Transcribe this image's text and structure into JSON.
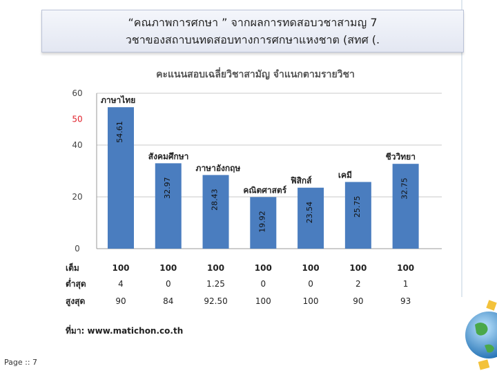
{
  "header": {
    "line1": "“คณภาพการศกษา ” จากผลการทดสอบวชาสามญ 7",
    "line2": "วชาของสถาบนทดสอบทางการศกษาแหงชาต (สทศ (."
  },
  "footer": {
    "page_label": "Page :: 7"
  },
  "chart_data": {
    "type": "bar",
    "title": "คะแนนสอบเฉลี่ยวิชาสามัญ จำแนกตามรายวิชา",
    "categories": [
      "ภาษาไทย",
      "สังคมศึกษา",
      "ภาษาอังกฤษ",
      "คณิตศาสตร์",
      "ฟิสิกส์",
      "เคมี",
      "ชีววิทยา"
    ],
    "values": [
      54.61,
      32.97,
      28.43,
      19.92,
      23.54,
      25.75,
      32.75
    ],
    "value_labels": [
      "54.61",
      "32.97",
      "28.43",
      "19.92",
      "23.54",
      "25.75",
      "32.75"
    ],
    "ylim": [
      0,
      60
    ],
    "y_ticks": [
      "0",
      "20",
      "40",
      "50",
      "60"
    ],
    "y_tick_values": [
      0,
      20,
      40,
      50,
      60
    ],
    "highlight_tick": "50",
    "bar_color": "#4a7dbf",
    "highlight_color": "#e0202a",
    "table": {
      "row_labels": [
        "เต็ม",
        "ต่ำสุด",
        "สูงสุด"
      ],
      "rows": [
        [
          "100",
          "100",
          "100",
          "100",
          "100",
          "100",
          "100"
        ],
        [
          "4",
          "0",
          "1.25",
          "0",
          "0",
          "2",
          "1"
        ],
        [
          "90",
          "84",
          "92.50",
          "100",
          "100",
          "90",
          "93"
        ]
      ]
    },
    "source": "ที่มา: www.matichon.co.th"
  }
}
